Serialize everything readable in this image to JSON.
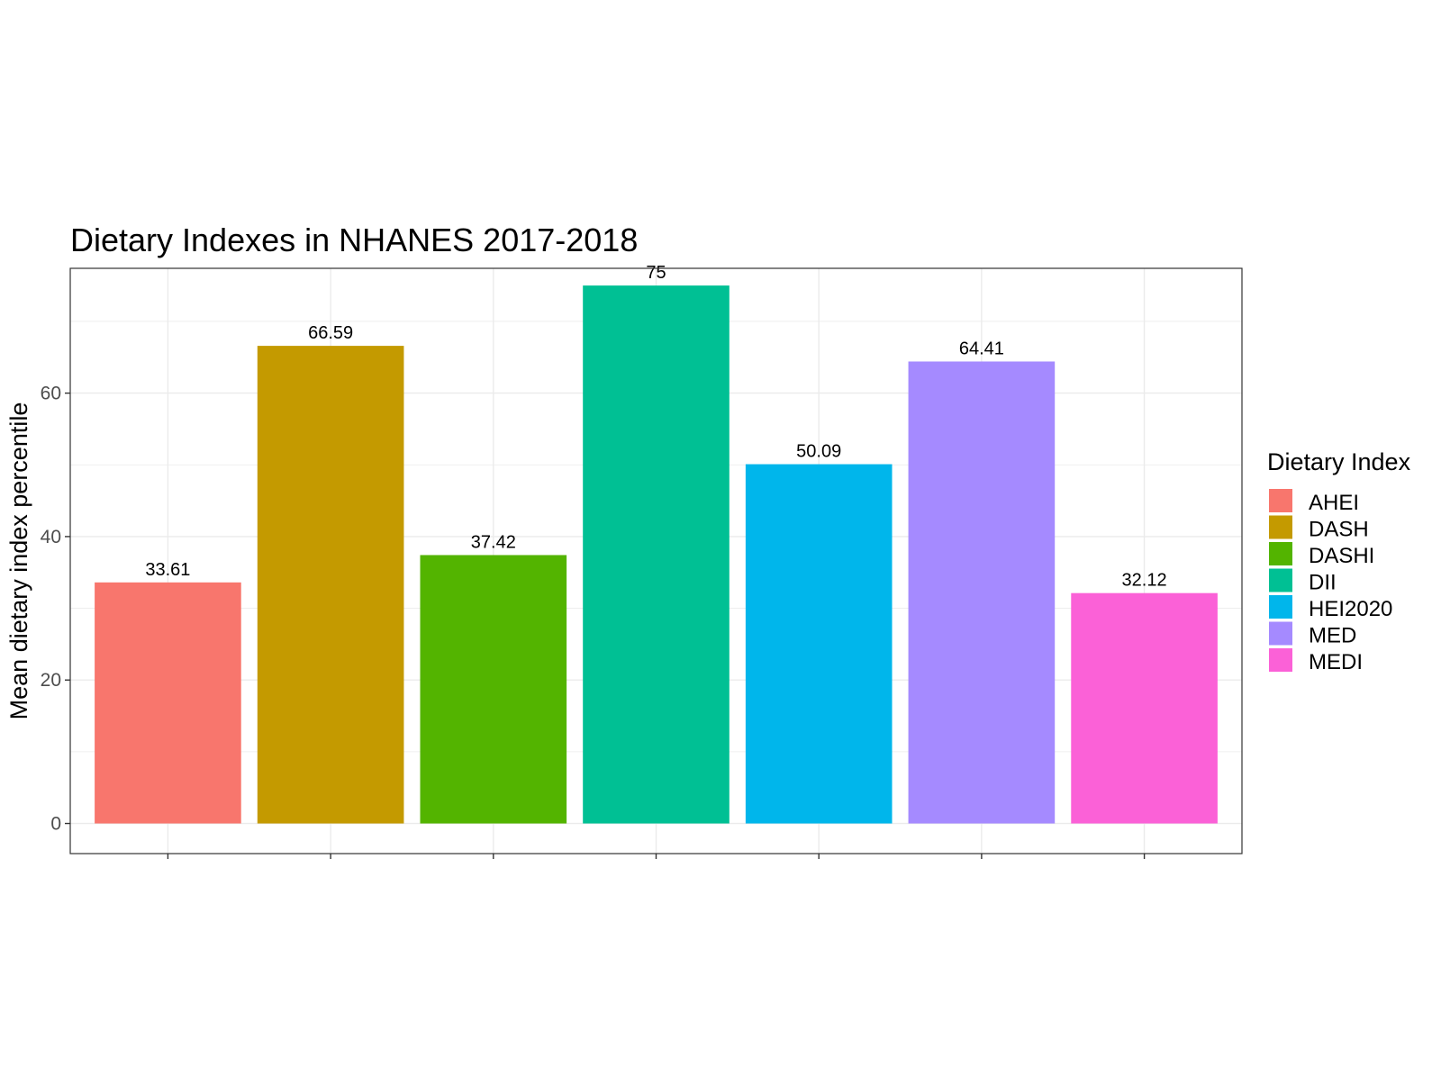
{
  "chart_data": {
    "type": "bar",
    "title": "Dietary Indexes in NHANES 2017-2018",
    "xlabel": "",
    "ylabel": "Mean dietary index percentile",
    "categories": [
      "AHEI",
      "DASH",
      "DASHI",
      "DII",
      "HEI2020",
      "MED",
      "MEDI"
    ],
    "values": [
      33.61,
      66.59,
      37.42,
      75,
      50.09,
      64.41,
      32.12
    ],
    "value_labels": [
      "33.61",
      "66.59",
      "37.42",
      "75",
      "50.09",
      "64.41",
      "32.12"
    ],
    "colors": [
      "#F8766D",
      "#C49A00",
      "#53B400",
      "#00C094",
      "#00B6EB",
      "#A58AFF",
      "#FB61D7"
    ],
    "ylim": [
      -4.2,
      77.4
    ],
    "y_ticks": [
      0,
      20,
      40,
      60
    ],
    "y_tick_labels": [
      "0",
      "20",
      "40",
      "60"
    ],
    "y_minor_ticks": [
      10,
      30,
      50,
      70
    ],
    "grid": true,
    "x_tick_labels_shown": false,
    "legend": {
      "title": "Dietary Index",
      "position": "right",
      "entries": [
        "AHEI",
        "DASH",
        "DASHI",
        "DII",
        "HEI2020",
        "MED",
        "MEDI"
      ]
    }
  }
}
